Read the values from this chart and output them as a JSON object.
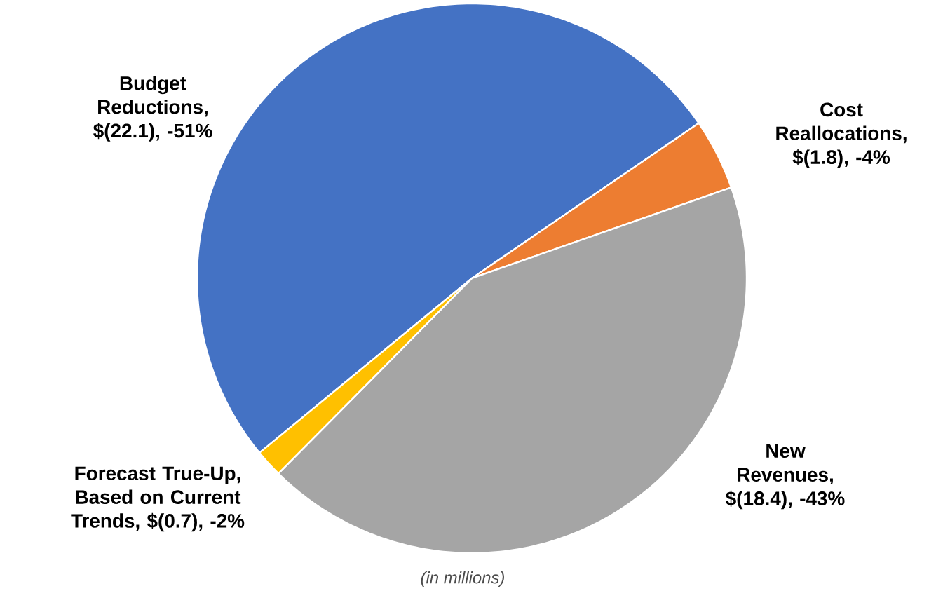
{
  "chart_data": {
    "type": "pie",
    "categories": [
      "Budget Reductions",
      "Cost Reallocations",
      "New Revenues",
      "Forecast True-Up, Based on Current Trends"
    ],
    "values": [
      22.1,
      1.8,
      18.4,
      0.7
    ],
    "colors": [
      "#4472c4",
      "#ed7d31",
      "#a5a5a5",
      "#ffc000"
    ],
    "value_labels": [
      ", $(22.1), -51%",
      ", $(1.8), -4%",
      ", $(18.4), -43%",
      ", $(0.7), -2%"
    ],
    "annotations": [
      "(in millions)"
    ]
  }
}
